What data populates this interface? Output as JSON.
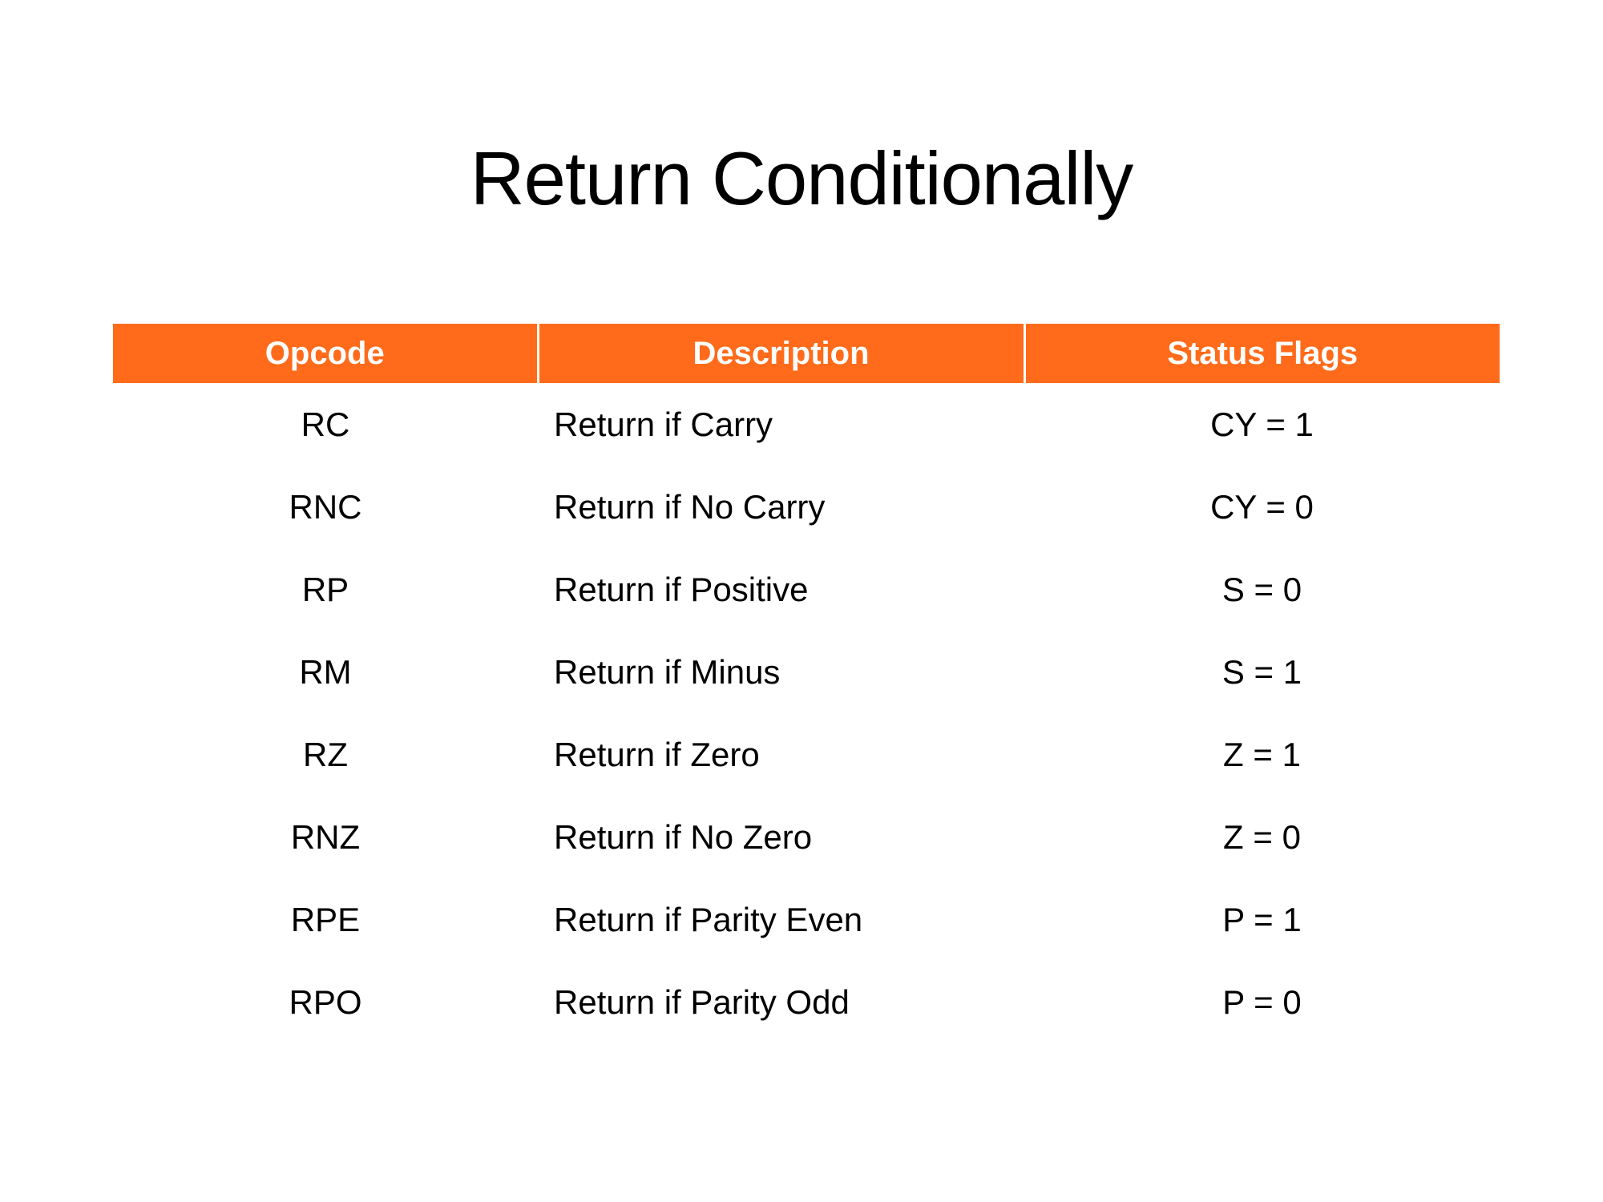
{
  "slide": {
    "title": "Return Conditionally"
  },
  "table": {
    "header_color": "#ff6b1a",
    "columns": [
      "Opcode",
      "Description",
      "Status Flags"
    ],
    "rows": [
      {
        "opcode": "RC",
        "description": "Return if Carry",
        "flags": "CY = 1"
      },
      {
        "opcode": "RNC",
        "description": "Return if No Carry",
        "flags": "CY = 0"
      },
      {
        "opcode": "RP",
        "description": "Return if Positive",
        "flags": "S = 0"
      },
      {
        "opcode": "RM",
        "description": "Return if Minus",
        "flags": "S = 1"
      },
      {
        "opcode": "RZ",
        "description": "Return if Zero",
        "flags": "Z = 1"
      },
      {
        "opcode": "RNZ",
        "description": "Return if No Zero",
        "flags": "Z = 0"
      },
      {
        "opcode": "RPE",
        "description": "Return if Parity Even",
        "flags": "P = 1"
      },
      {
        "opcode": "RPO",
        "description": "Return if Parity Odd",
        "flags": "P = 0"
      }
    ]
  }
}
